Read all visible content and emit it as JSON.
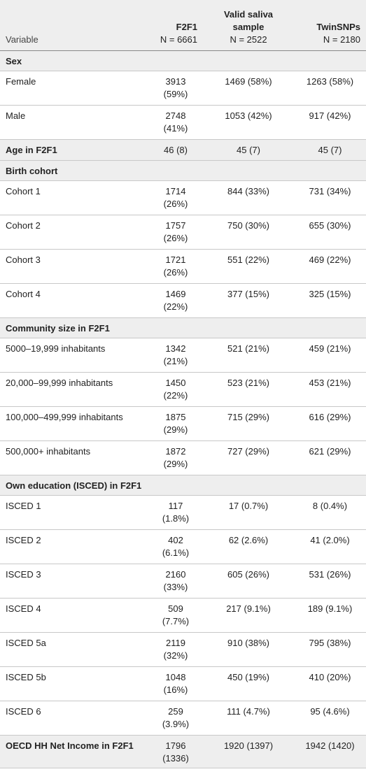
{
  "table": {
    "header": [
      {
        "title": "Variable"
      },
      {
        "title": "F2F1",
        "n": "N = 6661"
      },
      {
        "title": "Valid saliva sample",
        "n": "N = 2522"
      },
      {
        "title": "TwinSNPs",
        "n": "N = 2180"
      }
    ],
    "rows": [
      {
        "label": "Sex"
      },
      {
        "label": "Female",
        "values": [
          "3913 (59%)",
          "1469 (58%)",
          "1263 (58%)"
        ]
      },
      {
        "label": "Male",
        "values": [
          "2748 (41%)",
          "1053 (42%)",
          "917 (42%)"
        ]
      },
      {
        "label": "Age in F2F1",
        "bold": true,
        "values": [
          "46 (8)",
          "45 (7)",
          "45 (7)"
        ]
      },
      {
        "label": "Birth cohort"
      },
      {
        "label": "Cohort 1",
        "values": [
          "1714 (26%)",
          "844 (33%)",
          "731 (34%)"
        ]
      },
      {
        "label": "Cohort 2",
        "values": [
          "1757 (26%)",
          "750 (30%)",
          "655 (30%)"
        ]
      },
      {
        "label": "Cohort 3",
        "values": [
          "1721 (26%)",
          "551 (22%)",
          "469 (22%)"
        ]
      },
      {
        "label": "Cohort 4",
        "values": [
          "1469 (22%)",
          "377 (15%)",
          "325 (15%)"
        ]
      },
      {
        "label": "Community size in F2F1"
      },
      {
        "label": "5000–19,999 inhabitants",
        "values": [
          "1342 (21%)",
          "521 (21%)",
          "459 (21%)"
        ]
      },
      {
        "label": "20,000–99,999 inhabitants",
        "values": [
          "1450 (22%)",
          "523 (21%)",
          "453 (21%)"
        ]
      },
      {
        "label": "100,000–499,999 inhabitants",
        "values": [
          "1875 (29%)",
          "715 (29%)",
          "616 (29%)"
        ]
      },
      {
        "label": "500,000+ inhabitants",
        "values": [
          "1872 (29%)",
          "727 (29%)",
          "621 (29%)"
        ]
      },
      {
        "label": "Own education (ISCED) in F2F1"
      },
      {
        "label": "ISCED 1",
        "values": [
          "117 (1.8%)",
          "17 (0.7%)",
          "8 (0.4%)"
        ]
      },
      {
        "label": "ISCED 2",
        "values": [
          "402 (6.1%)",
          "62 (2.6%)",
          "41 (2.0%)"
        ]
      },
      {
        "label": "ISCED 3",
        "values": [
          "2160 (33%)",
          "605 (26%)",
          "531 (26%)"
        ]
      },
      {
        "label": "ISCED 4",
        "values": [
          "509 (7.7%)",
          "217 (9.1%)",
          "189 (9.1%)"
        ]
      },
      {
        "label": "ISCED 5a",
        "values": [
          "2119 (32%)",
          "910 (38%)",
          "795 (38%)"
        ]
      },
      {
        "label": "ISCED 5b",
        "values": [
          "1048 (16%)",
          "450 (19%)",
          "410 (20%)"
        ]
      },
      {
        "label": "ISCED 6",
        "values": [
          "259 (3.9%)",
          "111 (4.7%)",
          "95 (4.6%)"
        ]
      },
      {
        "label": "OECD HH Net Income in F2F1",
        "bold": true,
        "values": [
          "1796 (1336)",
          "1920 (1397)",
          "1942 (1420)"
        ]
      }
    ]
  }
}
